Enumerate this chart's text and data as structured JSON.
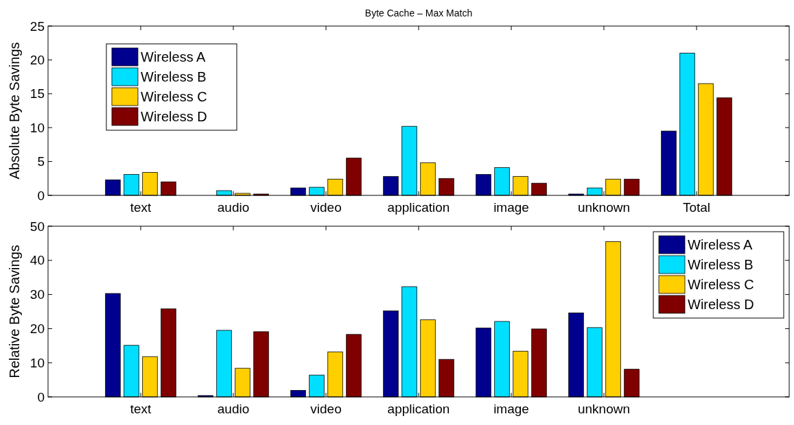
{
  "chart_data": [
    {
      "type": "bar",
      "title": "Byte Cache – Max Match",
      "ylabel": "Absolute Byte Savings",
      "categories": [
        "text",
        "audio",
        "video",
        "application",
        "image",
        "unknown",
        "Total"
      ],
      "series": [
        {
          "name": "Wireless A",
          "color": "#00008f",
          "values": [
            2.3,
            0,
            1.1,
            2.8,
            3.1,
            0.2,
            9.5
          ]
        },
        {
          "name": "Wireless B",
          "color": "#00dfff",
          "values": [
            3.1,
            0.7,
            1.2,
            10.2,
            4.1,
            1.1,
            21.0
          ]
        },
        {
          "name": "Wireless C",
          "color": "#ffcf00",
          "values": [
            3.4,
            0.3,
            2.4,
            4.8,
            2.8,
            2.4,
            16.5
          ]
        },
        {
          "name": "Wireless D",
          "color": "#800000",
          "values": [
            2.0,
            0.2,
            5.5,
            2.5,
            1.8,
            2.4,
            14.4
          ]
        }
      ],
      "ylim": [
        0,
        25
      ],
      "yticks": [
        0,
        5,
        10,
        15,
        20,
        25
      ],
      "legend": "top left",
      "grid": false
    },
    {
      "type": "bar",
      "ylabel": "Relative Byte Savings",
      "categories": [
        "text",
        "audio",
        "video",
        "application",
        "image",
        "unknown"
      ],
      "series": [
        {
          "name": "Wireless A",
          "color": "#00008f",
          "values": [
            30.3,
            0.4,
            1.9,
            25.2,
            20.2,
            24.6
          ]
        },
        {
          "name": "Wireless B",
          "color": "#00dfff",
          "values": [
            15.1,
            19.5,
            6.4,
            32.3,
            22.1,
            20.3
          ]
        },
        {
          "name": "Wireless C",
          "color": "#ffcf00",
          "values": [
            11.8,
            8.4,
            13.2,
            22.6,
            13.4,
            45.5
          ]
        },
        {
          "name": "Wireless D",
          "color": "#800000",
          "values": [
            25.8,
            19.1,
            18.3,
            11.0,
            19.9,
            8.1
          ]
        }
      ],
      "ylim": [
        0,
        50
      ],
      "yticks": [
        0,
        10,
        20,
        30,
        40,
        50
      ],
      "legend": "top right",
      "grid": false
    }
  ]
}
